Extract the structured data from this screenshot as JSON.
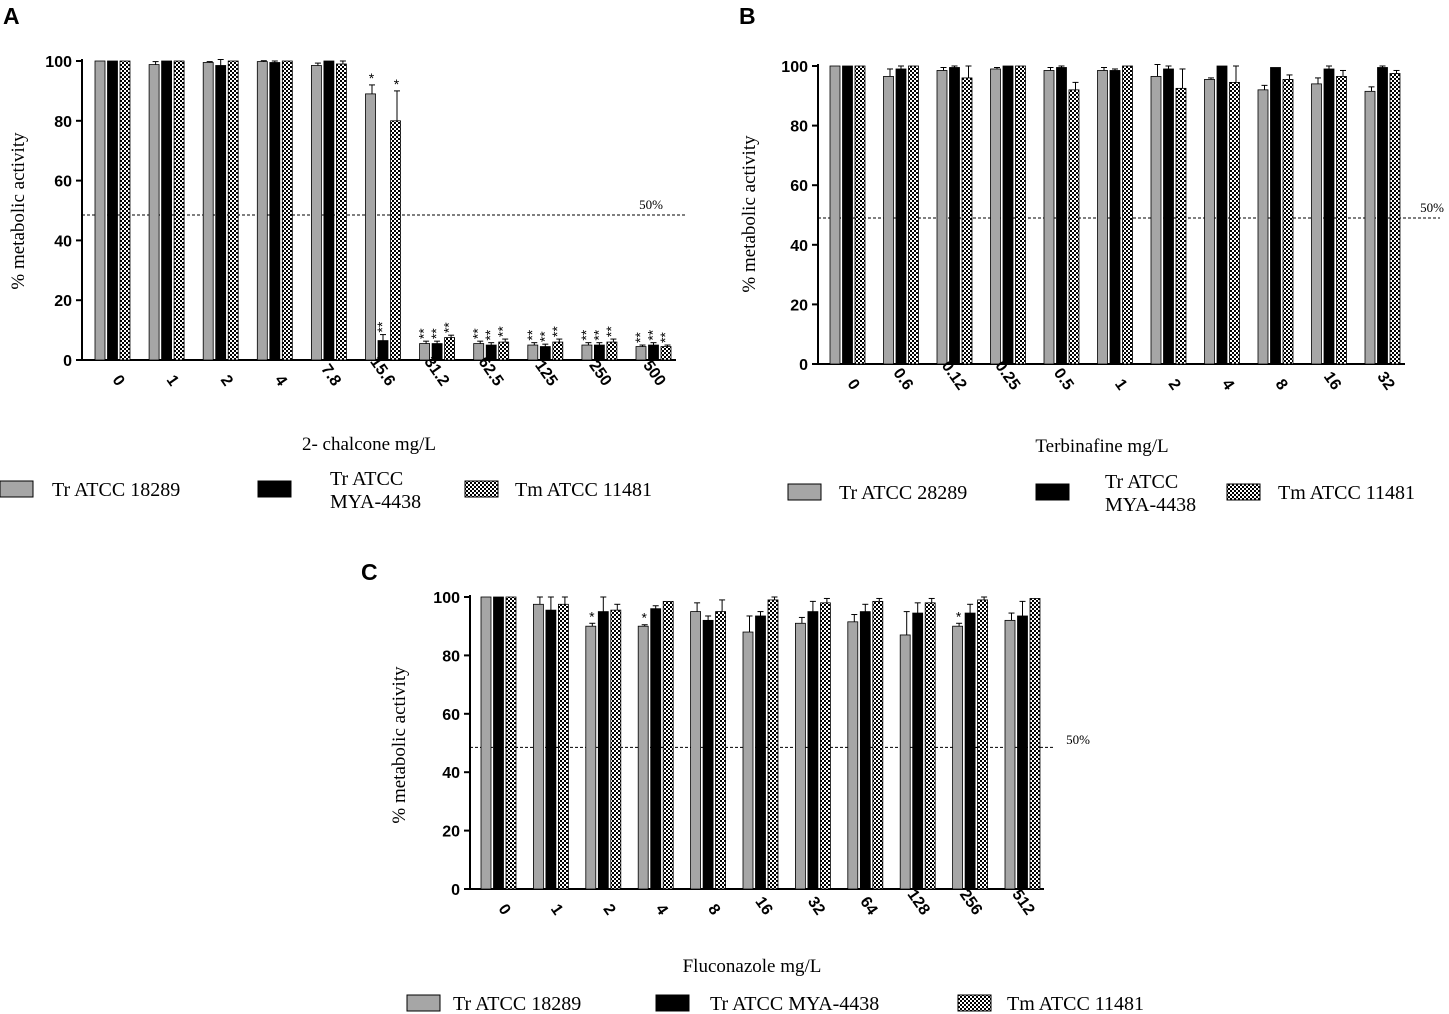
{
  "figure": {
    "reference_label": "50%",
    "series_colors": {
      "gray": "#a6a6a6",
      "black": "#000000",
      "checker": "checker"
    }
  },
  "chart_data": [
    {
      "panel": "A",
      "type": "bar",
      "title": "",
      "xlabel": "2- chalcone mg/L",
      "ylabel": "% metabolic activity",
      "ylim": [
        0,
        100
      ],
      "yticks": [
        0,
        20,
        40,
        60,
        80,
        100
      ],
      "reference_line": 48.5,
      "categories": [
        "0",
        "1",
        "2",
        "4",
        "7.8",
        "15.6",
        "31.2",
        "62.5",
        "125",
        "250",
        "500"
      ],
      "series": [
        {
          "name": "Tr  ATCC 18289",
          "style": "gray",
          "values": [
            100,
            98.8,
            99.5,
            99.8,
            98.5,
            89,
            5.5,
            5.5,
            5,
            5,
            4.5
          ],
          "errors": [
            0,
            1,
            0.3,
            0.3,
            0.8,
            3,
            0.8,
            0.8,
            0.8,
            0.8,
            0.5
          ],
          "labels": [
            "",
            "",
            "",
            "",
            "",
            "*",
            "**",
            "**",
            "**",
            "**",
            "**"
          ]
        },
        {
          "name": "Tr ATCC MYA-4438",
          "style": "black",
          "values": [
            100,
            100,
            98.5,
            99.5,
            100,
            6.5,
            5.5,
            5,
            4.5,
            5,
            5
          ],
          "errors": [
            0,
            0,
            2,
            0.5,
            0,
            2,
            0.8,
            0.8,
            0.8,
            0.8,
            0.8
          ],
          "labels": [
            "",
            "",
            "",
            "",
            "",
            "**",
            "**",
            "**",
            "**",
            "**",
            "**"
          ]
        },
        {
          "name": "Tm ATCC 11481",
          "style": "checker",
          "values": [
            100,
            100,
            100,
            100,
            99,
            80,
            7.5,
            6,
            6,
            6,
            4.5
          ],
          "errors": [
            0,
            0,
            0,
            0,
            1,
            10,
            0.8,
            1,
            1,
            1,
            0.5
          ],
          "labels": [
            "",
            "",
            "",
            "",
            "",
            "*",
            "**",
            "**",
            "**",
            "**",
            "**"
          ]
        }
      ],
      "legend": [
        {
          "lines": [
            "Tr  ATCC 18289"
          ],
          "style": "gray"
        },
        {
          "lines": [
            "Tr ATCC",
            "MYA-4438"
          ],
          "style": "black"
        },
        {
          "lines": [
            "Tm ATCC 11481"
          ],
          "style": "checker"
        }
      ]
    },
    {
      "panel": "B",
      "type": "bar",
      "title": "",
      "xlabel": "Terbinafine mg/L",
      "ylabel": "% metabolic activity",
      "ylim": [
        0,
        100
      ],
      "yticks": [
        0,
        20,
        40,
        60,
        80,
        100
      ],
      "reference_line": 49,
      "categories": [
        "0",
        "0.6",
        "0.12",
        "0.25",
        "0.5",
        "1",
        "2",
        "4",
        "8",
        "16",
        "32"
      ],
      "series": [
        {
          "name": "Tr  ATCC 28289",
          "style": "gray",
          "values": [
            100,
            96.5,
            98.5,
            99,
            98.5,
            98.5,
            96.5,
            95.5,
            92,
            94,
            91.5
          ],
          "errors": [
            0,
            2.5,
            1,
            0.5,
            1,
            1,
            4,
            0.5,
            1.5,
            2,
            1.5
          ],
          "labels": [
            "",
            "",
            "",
            "",
            "",
            "",
            "",
            "",
            "",
            "",
            ""
          ]
        },
        {
          "name": "Tr ATCC MYA-4438",
          "style": "black",
          "values": [
            100,
            99,
            99.5,
            100,
            99.5,
            98.5,
            99,
            100,
            99.5,
            99,
            99.5
          ],
          "errors": [
            0,
            1,
            0.5,
            0,
            0.5,
            0.5,
            1,
            0,
            0,
            1,
            0.5
          ],
          "labels": [
            "",
            "",
            "",
            "",
            "",
            "",
            "",
            "",
            "",
            "",
            ""
          ]
        },
        {
          "name": "Tm ATCC 11481",
          "style": "checker",
          "values": [
            100,
            100,
            96,
            100,
            92,
            100,
            92.5,
            94.5,
            95.5,
            96.5,
            97.5
          ],
          "errors": [
            0,
            0,
            4,
            0,
            2.5,
            0,
            6.5,
            5.5,
            1.5,
            2,
            1
          ],
          "labels": [
            "",
            "",
            "",
            "",
            "",
            "",
            "",
            "",
            "",
            "",
            ""
          ]
        }
      ],
      "legend": [
        {
          "lines": [
            "Tr  ATCC 28289"
          ],
          "style": "gray"
        },
        {
          "lines": [
            "Tr ATCC",
            "MYA-4438"
          ],
          "style": "black"
        },
        {
          "lines": [
            "Tm ATCC 11481"
          ],
          "style": "checker"
        }
      ]
    },
    {
      "panel": "C",
      "type": "bar",
      "title": "",
      "xlabel": "Fluconazole mg/L",
      "ylabel": "% metabolic activity",
      "ylim": [
        0,
        100
      ],
      "yticks": [
        0,
        20,
        40,
        60,
        80,
        100
      ],
      "reference_line": 48.5,
      "categories": [
        "0",
        "1",
        "2",
        "4",
        "8",
        "16",
        "32",
        "64",
        "128",
        "256",
        "512"
      ],
      "series": [
        {
          "name": "Tr  ATCC 18289",
          "style": "gray",
          "values": [
            100,
            97.5,
            90,
            90,
            95,
            88,
            91,
            91.5,
            87,
            90,
            92
          ],
          "errors": [
            0,
            2.5,
            1,
            0.5,
            3,
            5.5,
            2,
            2.5,
            8,
            1,
            2.5
          ],
          "labels": [
            "",
            "",
            "*",
            "*",
            "",
            "",
            "",
            "",
            "",
            "*",
            ""
          ]
        },
        {
          "name": "Tr ATCC MYA-4438",
          "style": "black",
          "values": [
            100,
            95.5,
            95,
            96,
            92,
            93.5,
            95,
            95,
            94.5,
            94.5,
            93.5
          ],
          "errors": [
            0,
            4.5,
            5,
            1,
            1.5,
            1.5,
            3.5,
            2.5,
            3.5,
            3,
            5
          ],
          "labels": [
            "",
            "",
            "",
            "",
            "",
            "",
            "",
            "",
            "",
            "",
            ""
          ]
        },
        {
          "name": "Tm ATCC 11481",
          "style": "checker",
          "values": [
            100,
            97.5,
            95.5,
            98.5,
            95,
            99,
            98,
            98.5,
            98,
            99,
            99.5
          ],
          "errors": [
            0,
            2.5,
            2,
            0,
            4,
            1,
            1.5,
            1,
            1.5,
            1,
            0
          ],
          "labels": [
            "",
            "",
            "",
            "",
            "",
            "",
            "",
            "",
            "",
            "",
            ""
          ]
        }
      ],
      "legend": [
        {
          "lines": [
            "Tr  ATCC 18289"
          ],
          "style": "gray"
        },
        {
          "lines": [
            "Tr ATCC MYA-4438"
          ],
          "style": "black"
        },
        {
          "lines": [
            "Tm ATCC 11481"
          ],
          "style": "checker"
        }
      ]
    }
  ]
}
